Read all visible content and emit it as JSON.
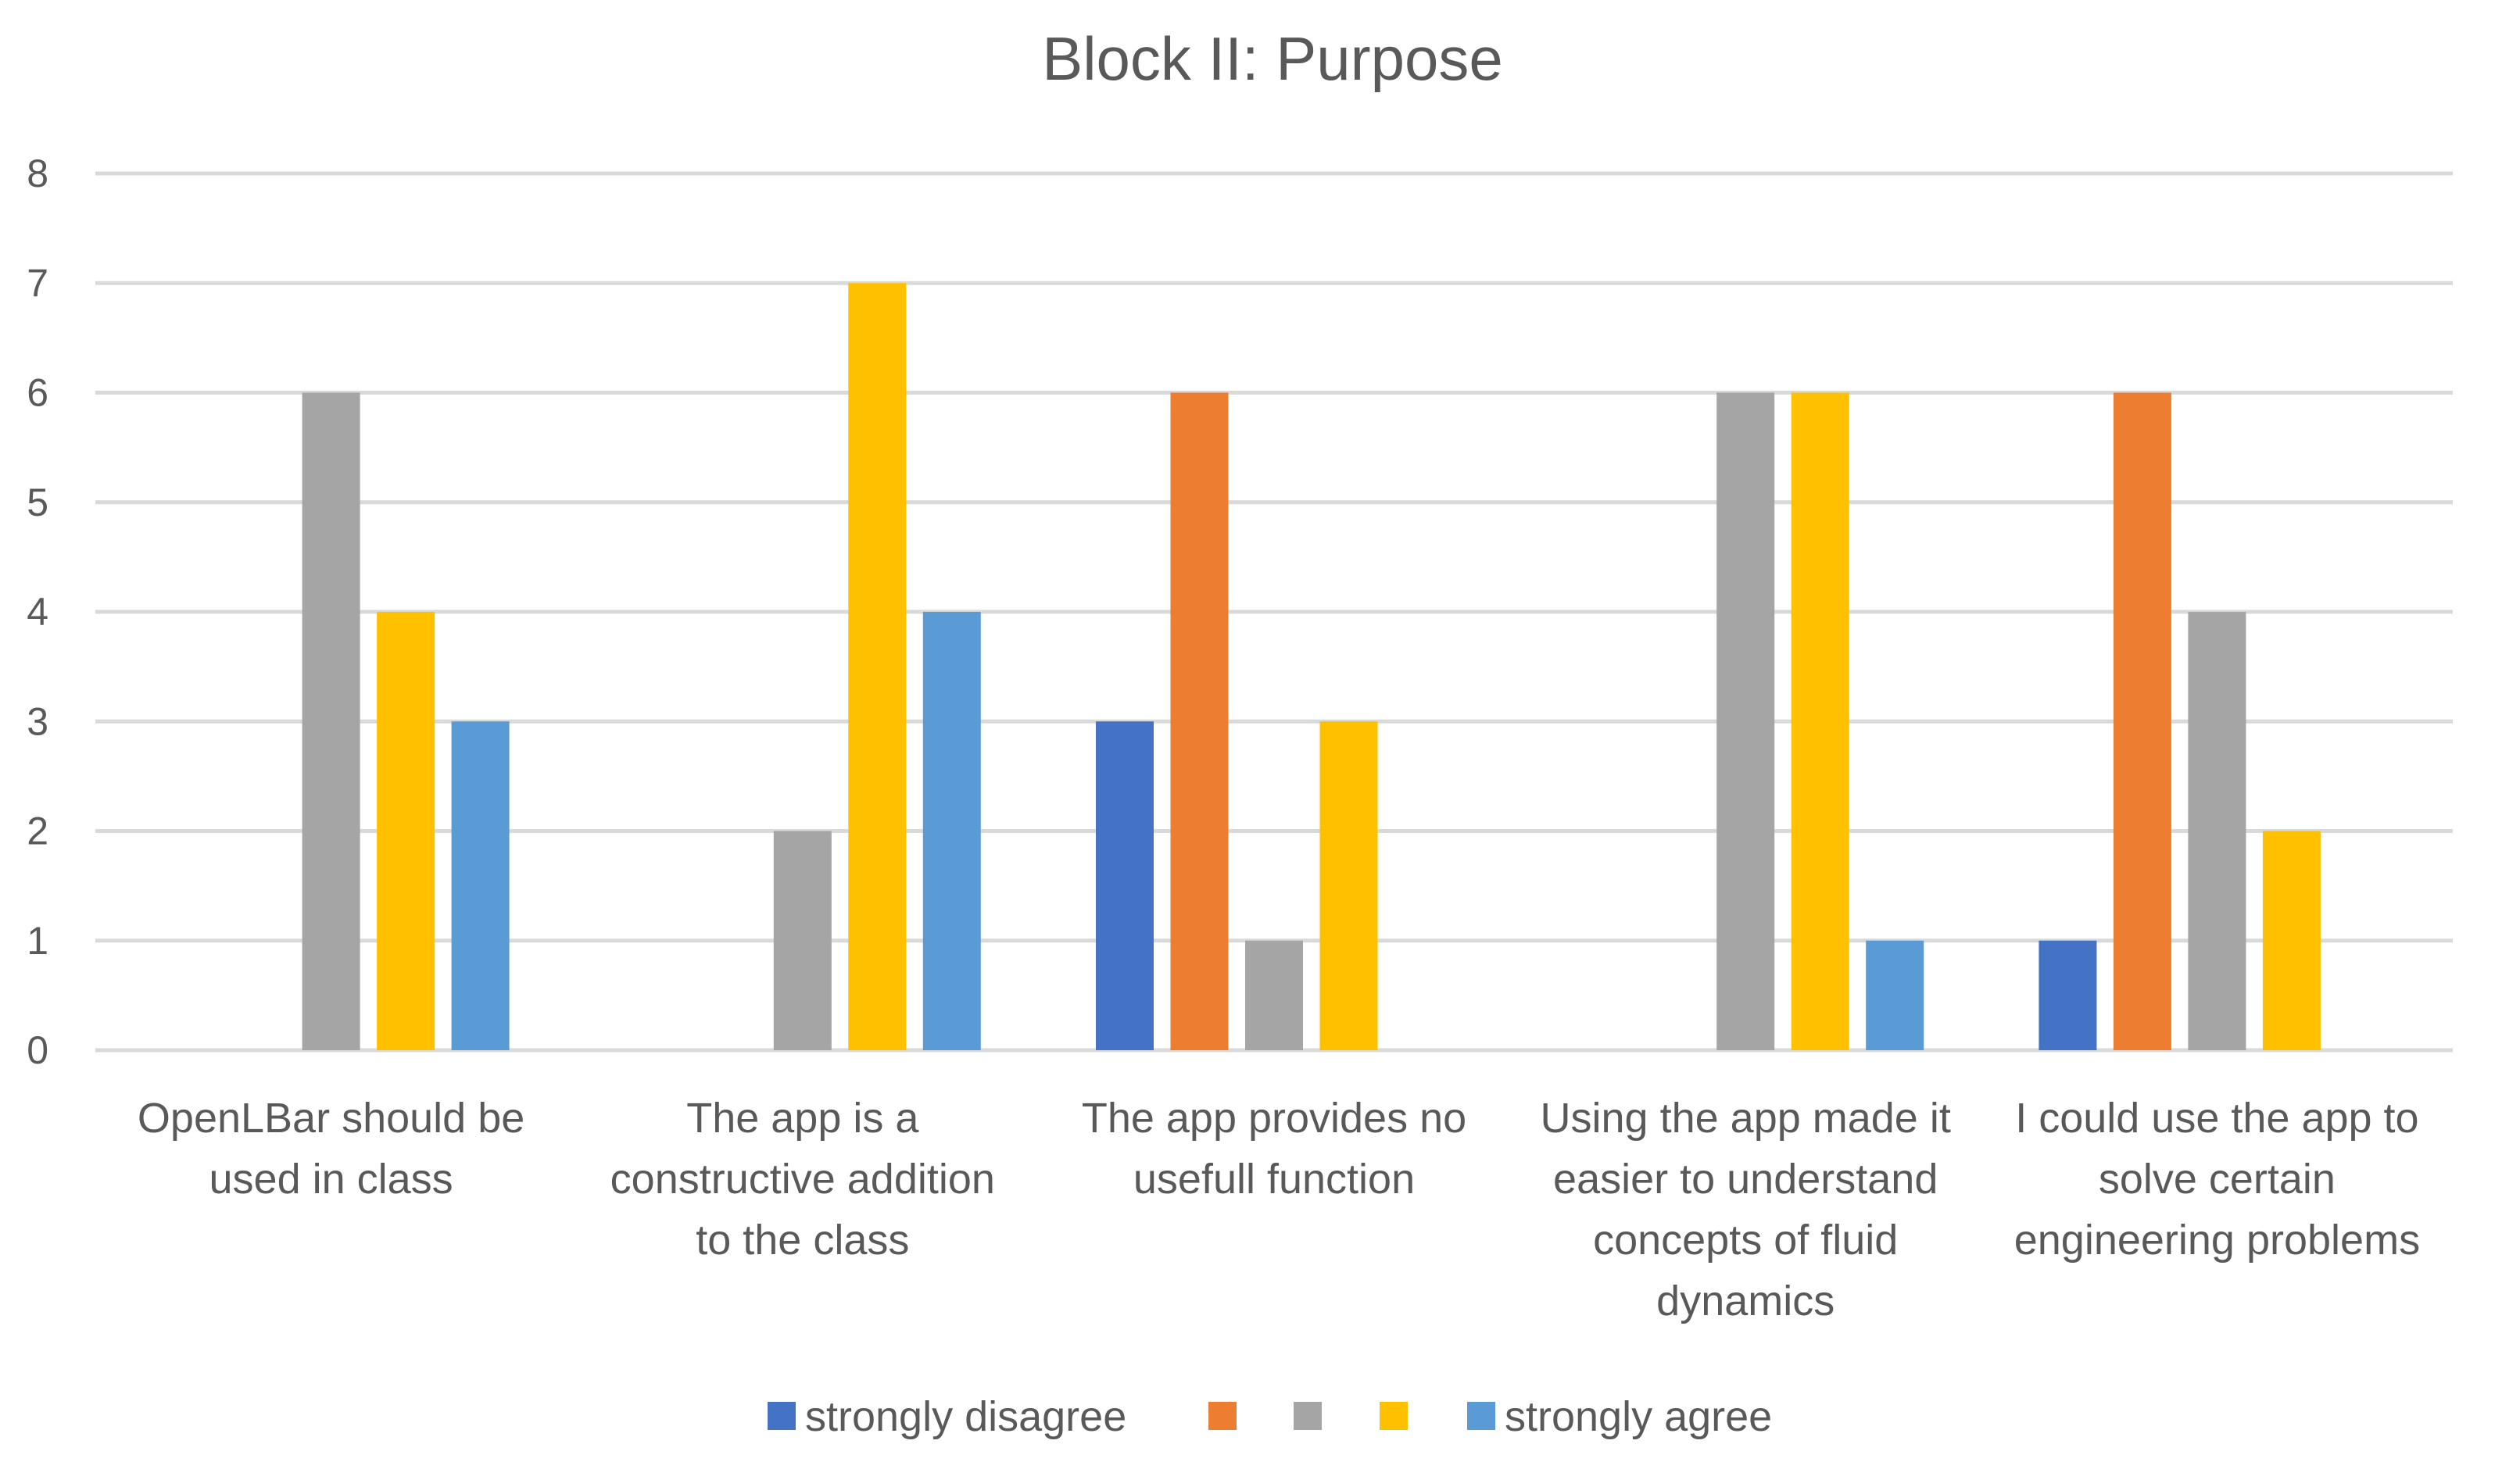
{
  "chart_data": {
    "type": "bar",
    "title": "Block II: Purpose",
    "xlabel": "",
    "ylabel": "",
    "ylim": [
      0,
      8
    ],
    "yticks": [
      0,
      1,
      2,
      3,
      4,
      5,
      6,
      7,
      8
    ],
    "grid": true,
    "legend_position": "bottom",
    "categories": [
      [
        "OpenLBar should be",
        "used in class"
      ],
      [
        "The app is a",
        "constructive addition",
        "to the class"
      ],
      [
        "The app provides no",
        "usefull function"
      ],
      [
        "Using the app made it",
        "easier to understand",
        "concepts of fluid",
        "dynamics"
      ],
      [
        "I could use the app to",
        "solve certain",
        "engineering problems"
      ]
    ],
    "series": [
      {
        "name": "strongly disagree",
        "color": "#4472c4",
        "values": [
          0,
          0,
          3,
          0,
          1
        ]
      },
      {
        "name": "",
        "color": "#ed7d31",
        "values": [
          0,
          0,
          6,
          0,
          6
        ]
      },
      {
        "name": "",
        "color": "#a5a5a5",
        "values": [
          6,
          2,
          1,
          6,
          4
        ]
      },
      {
        "name": "",
        "color": "#ffc000",
        "values": [
          4,
          7,
          3,
          6,
          2
        ]
      },
      {
        "name": "strongly agree",
        "color": "#5b9bd5",
        "values": [
          3,
          4,
          0,
          1,
          0
        ]
      }
    ]
  }
}
